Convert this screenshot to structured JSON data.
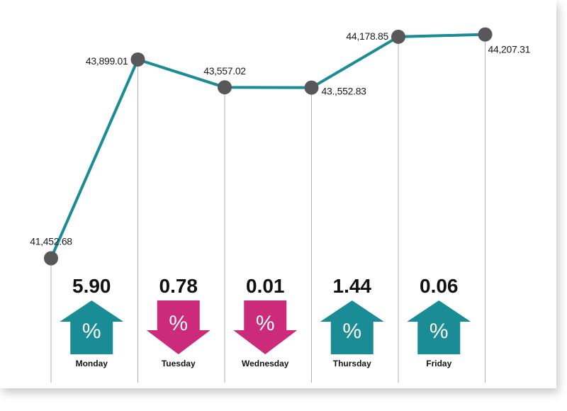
{
  "chart_data": {
    "type": "line",
    "categories": [
      "",
      "Monday",
      "Tuesday",
      "Wednesday",
      "Thursday",
      "Friday"
    ],
    "series": [
      {
        "values": [
          41452.68,
          43899.01,
          43557.02,
          43552.83,
          44178.85,
          44207.31
        ],
        "labels": [
          "41,452.68",
          "43,899.01",
          "43,557.02",
          "43.,552.83",
          "44,178.85",
          "44,207.31"
        ]
      }
    ],
    "ylim": [
      41300,
      44300
    ],
    "grid": "vertical",
    "changes": [
      {
        "day": "Monday",
        "value": "5.90",
        "direction": "up"
      },
      {
        "day": "Tuesday",
        "value": "0.78",
        "direction": "down"
      },
      {
        "day": "Wednesday",
        "value": "0.01",
        "direction": "down"
      },
      {
        "day": "Thursday",
        "value": "1.44",
        "direction": "up"
      },
      {
        "day": "Friday",
        "value": "0.06",
        "direction": "up"
      }
    ],
    "arrow_symbol": "%",
    "colors": {
      "line": "#1a8c96",
      "marker": "#58585a",
      "up": "#1a8c96",
      "down": "#cc2a7b",
      "grid": "#b0b0b0"
    }
  }
}
